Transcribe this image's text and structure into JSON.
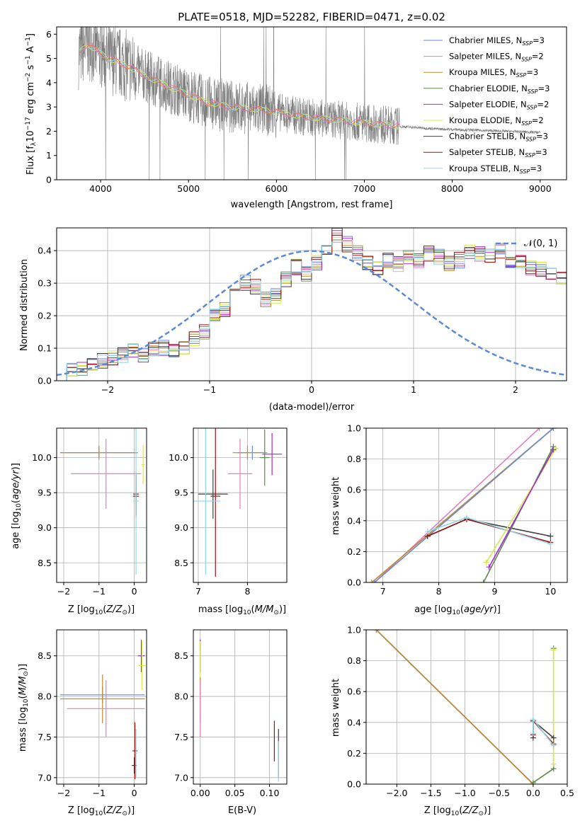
{
  "colors": {
    "Chabrier MILES": "#6a8ad6",
    "Salpeter MILES": "#e17fbf",
    "Kroupa MILES": "#c08a2e",
    "Chabrier ELODIE": "#5d8a4c",
    "Salpeter ELODIE": "#a32bd0",
    "Kroupa ELODIE": "#d9e74a",
    "Chabrier STELIB": "#3f3f3f",
    "Salpeter STELIB": "#9c1313",
    "Kroupa STELIB": "#8fd8e6",
    "data": "#7f7f7f",
    "fit_overlay": "#e8743b",
    "normal": "#5b8ad8"
  },
  "chart_data": [
    {
      "id": "spectrum",
      "type": "line",
      "title": "PLATE=0518, MJD=52282, FIBERID=0471, z=0.02",
      "xlabel": "wavelength [Angstrom, rest frame]",
      "ylabel": "Flux [f_λ 10^-17 erg cm^-2 s^-1 A^-1]",
      "xlim": [
        3500,
        9300
      ],
      "ylim": [
        0,
        6.3
      ],
      "xticks": [
        4000,
        5000,
        6000,
        7000,
        8000,
        9000
      ],
      "yticks": [
        0,
        1,
        2,
        3,
        4,
        5,
        6
      ],
      "grid": false,
      "legend_position": "top-right",
      "legend": [
        {
          "base": "Chabrier MILES, N",
          "n": "3"
        },
        {
          "base": "Salpeter MILES, N",
          "n": "2"
        },
        {
          "base": "Kroupa MILES, N",
          "n": "3"
        },
        {
          "base": "Chabrier ELODIE, N",
          "n": "3"
        },
        {
          "base": "Salpeter ELODIE, N",
          "n": "2"
        },
        {
          "base": "Kroupa ELODIE, N",
          "n": "2"
        },
        {
          "base": "Chabrier STELIB, N",
          "n": "3"
        },
        {
          "base": "Salpeter STELIB, N",
          "n": "3"
        },
        {
          "base": "Kroupa STELIB, N",
          "n": "3"
        }
      ],
      "continuum_estimate": {
        "x": [
          3750,
          3850,
          4000,
          4100,
          4300,
          4500,
          4800,
          5000,
          5200,
          5500,
          5800,
          6000,
          6300,
          6600,
          7000,
          7400,
          7800,
          8200,
          8600,
          9000
        ],
        "y": [
          5.2,
          5.6,
          5.2,
          5.0,
          4.7,
          4.3,
          3.8,
          3.5,
          3.2,
          3.0,
          2.9,
          2.8,
          2.6,
          2.5,
          2.35,
          2.2,
          2.1,
          2.05,
          2.0,
          1.95
        ]
      }
    },
    {
      "id": "residuals",
      "type": "line",
      "xlabel": "(data-model)/error",
      "ylabel": "Normed distribution",
      "xlim": [
        -2.5,
        2.5
      ],
      "ylim": [
        0,
        0.47
      ],
      "xticks": [
        -2,
        -1,
        0,
        1,
        2
      ],
      "yticks": [
        0.0,
        0.1,
        0.2,
        0.3,
        0.4
      ],
      "grid": true,
      "legend_position": "top-right",
      "legend": [
        "𝒩(0, 1)"
      ],
      "normal_reference": {
        "mean": 0,
        "sigma": 1
      },
      "bin_width": 0.1,
      "bin_start": -2.5,
      "histogram_estimate": [
        0.02,
        0.03,
        0.04,
        0.05,
        0.06,
        0.07,
        0.08,
        0.09,
        0.08,
        0.1,
        0.1,
        0.09,
        0.1,
        0.13,
        0.15,
        0.2,
        0.22,
        0.26,
        0.3,
        0.29,
        0.25,
        0.26,
        0.31,
        0.35,
        0.33,
        0.36,
        0.4,
        0.45,
        0.42,
        0.39,
        0.36,
        0.35,
        0.37,
        0.36,
        0.38,
        0.37,
        0.39,
        0.38,
        0.36,
        0.37,
        0.4,
        0.39,
        0.38,
        0.4,
        0.36,
        0.37,
        0.35,
        0.34,
        0.33,
        0.31,
        0.32,
        0.33,
        0.28,
        0.3,
        0.26,
        0.27,
        0.28,
        0.24,
        0.21,
        0.22,
        0.2,
        0.19,
        0.17,
        0.16,
        0.14,
        0.14,
        0.12,
        0.11,
        0.1,
        0.08,
        0.09,
        0.08,
        0.07,
        0.06,
        0.05,
        0.05,
        0.05,
        0.04,
        0.04,
        0.04
      ]
    },
    {
      "id": "age_vs_Z",
      "type": "scatter",
      "xlabel": "Z [log10(Z/Z⊙)]",
      "ylabel": "age [log10(age/yr)]",
      "xlim": [
        -2.2,
        0.35
      ],
      "ylim": [
        8.22,
        10.42
      ],
      "xticks": [
        -2,
        -1,
        0
      ],
      "yticks": [
        8.5,
        9.0,
        9.5,
        10.0
      ],
      "grid": true,
      "points": [
        {
          "model": "Chabrier MILES",
          "x": -1.0,
          "y": 10.07,
          "xerr": 1.1,
          "yerr": 0.08
        },
        {
          "model": "Kroupa MILES",
          "x": -1.0,
          "y": 10.07,
          "xerr": 1.1,
          "yerr": 0.1
        },
        {
          "model": "Salpeter MILES",
          "x": -0.8,
          "y": 9.77,
          "xerr": 1.0,
          "yerr": 0.5
        },
        {
          "model": "Kroupa ELODIE",
          "x": 0.25,
          "y": 9.9,
          "xerr": 0.05,
          "yerr": 0.28
        },
        {
          "model": "Salpeter STELIB",
          "x": 0.05,
          "y": 9.45,
          "xerr": 0.08,
          "yerr": 0.3
        },
        {
          "model": "Chabrier STELIB",
          "x": 0.05,
          "y": 9.48,
          "xerr": 0.08,
          "yerr": 0.3
        },
        {
          "model": "Kroupa STELIB",
          "x": 0.05,
          "y": 9.38,
          "xerr": 0.08,
          "yerr": 1.05
        }
      ]
    },
    {
      "id": "age_vs_mass",
      "type": "scatter",
      "xlabel": "mass [log10(M/M⊙)]",
      "ylabel": "",
      "xlim": [
        6.9,
        8.8
      ],
      "ylim": [
        8.22,
        10.42
      ],
      "xticks": [
        7,
        8
      ],
      "yticks": [
        8.5,
        9.0,
        9.5,
        10.0
      ],
      "grid": true,
      "points": [
        {
          "model": "Chabrier STELIB",
          "x": 7.3,
          "y": 9.48,
          "xerr": 0.3,
          "yerr": 0.35
        },
        {
          "model": "Salpeter STELIB",
          "x": 7.35,
          "y": 9.45,
          "xerr": 0.1,
          "yerr": 1.15
        },
        {
          "model": "Kroupa STELIB",
          "x": 7.15,
          "y": 9.38,
          "xerr": 0.3,
          "yerr": 1.05
        },
        {
          "model": "Salpeter MILES",
          "x": 7.85,
          "y": 9.77,
          "xerr": 0.25,
          "yerr": 0.5
        },
        {
          "model": "Chabrier MILES",
          "x": 8.1,
          "y": 10.07,
          "xerr": 0.3,
          "yerr": 0.1
        },
        {
          "model": "Kroupa MILES",
          "x": 8.0,
          "y": 10.07,
          "xerr": 0.3,
          "yerr": 0.1
        },
        {
          "model": "Salpeter ELODIE",
          "x": 8.5,
          "y": 10.05,
          "xerr": 0.2,
          "yerr": 0.3
        },
        {
          "model": "Chabrier ELODIE",
          "x": 8.35,
          "y": 10.0,
          "xerr": 0.1,
          "yerr": 0.4
        }
      ]
    },
    {
      "id": "weight_vs_age",
      "type": "line",
      "xlabel": "age [log10(age/yr)]",
      "ylabel": "mass weight",
      "xlim": [
        6.7,
        10.3
      ],
      "ylim": [
        0,
        1
      ],
      "xticks": [
        7,
        8,
        9,
        10
      ],
      "yticks": [
        0.0,
        0.2,
        0.4,
        0.6,
        0.8,
        1.0
      ],
      "grid": true,
      "series": [
        {
          "model": "Salpeter MILES",
          "x": [
            6.85,
            9.8
          ],
          "y": [
            0.0,
            1.0
          ]
        },
        {
          "model": "Kroupa MILES",
          "x": [
            6.8,
            10.05
          ],
          "y": [
            0.0,
            1.0
          ]
        },
        {
          "model": "Chabrier MILES",
          "x": [
            6.85,
            10.05
          ],
          "y": [
            0.0,
            1.0
          ]
        },
        {
          "model": "Chabrier STELIB",
          "x": [
            7.8,
            8.5,
            10.0
          ],
          "y": [
            0.3,
            0.41,
            0.3
          ]
        },
        {
          "model": "Salpeter STELIB",
          "x": [
            7.8,
            8.5,
            10.0
          ],
          "y": [
            0.3,
            0.41,
            0.26
          ]
        },
        {
          "model": "Kroupa STELIB",
          "x": [
            7.8,
            8.5,
            10.0
          ],
          "y": [
            0.33,
            0.42,
            0.25
          ]
        },
        {
          "model": "Chabrier ELODIE",
          "x": [
            8.8,
            10.05
          ],
          "y": [
            0.0,
            0.88
          ]
        },
        {
          "model": "Kroupa ELODIE",
          "x": [
            8.85,
            10.1
          ],
          "y": [
            0.13,
            0.87
          ]
        },
        {
          "model": "Salpeter ELODIE",
          "x": [
            8.9,
            10.05
          ],
          "y": [
            0.1,
            0.86
          ]
        }
      ]
    },
    {
      "id": "mass_vs_Z",
      "type": "scatter",
      "xlabel": "Z [log10(Z/Z⊙)]",
      "ylabel": "mass [log10(M/M⊙)]",
      "xlim": [
        -2.2,
        0.35
      ],
      "ylim": [
        6.92,
        8.82
      ],
      "xticks": [
        -2,
        -1,
        0
      ],
      "yticks": [
        7.0,
        7.5,
        8.0,
        8.5
      ],
      "grid": true,
      "points": [
        {
          "model": "Chabrier MILES",
          "x": -0.9,
          "y": 8.02,
          "xerr": 1.2,
          "yerr": 0.1
        },
        {
          "model": "Kroupa MILES",
          "x": -0.9,
          "y": 7.97,
          "xerr": 1.2,
          "yerr": 0.3
        },
        {
          "model": "Salpeter MILES",
          "x": -0.8,
          "y": 7.85,
          "xerr": 1.1,
          "yerr": 0.35
        },
        {
          "model": "Salpeter ELODIE",
          "x": 0.2,
          "y": 8.5,
          "xerr": 0.1,
          "yerr": 0.2
        },
        {
          "model": "Kroupa ELODIE",
          "x": 0.22,
          "y": 8.38,
          "xerr": 0.1,
          "yerr": 0.3
        },
        {
          "model": "Salpeter STELIB",
          "x": 0.02,
          "y": 7.33,
          "xerr": 0.07,
          "yerr": 0.35
        },
        {
          "model": "Chabrier STELIB",
          "x": 0.0,
          "y": 7.15,
          "xerr": 0.07,
          "yerr": 0.1
        },
        {
          "model": "Kroupa STELIB",
          "x": 0.05,
          "y": 7.3,
          "xerr": 0.03,
          "yerr": 0.3
        }
      ]
    },
    {
      "id": "mass_vs_EBV",
      "type": "scatter",
      "xlabel": "E(B-V)",
      "ylabel": "",
      "xlim": [
        -0.01,
        0.125
      ],
      "ylim": [
        6.92,
        8.82
      ],
      "xticks": [
        0.0,
        0.05,
        0.1
      ],
      "xtick_labels": [
        "0.00",
        "0.05",
        "0.10"
      ],
      "yticks": [
        7.0,
        7.5,
        8.0,
        8.5
      ],
      "grid": true,
      "points": [
        {
          "model": "Salpeter ELODIE",
          "x": 0.0,
          "y": 8.5,
          "xerr": 0.0,
          "yerr": 0.2
        },
        {
          "model": "Kroupa ELODIE",
          "x": 0.0,
          "y": 8.38,
          "xerr": 0.0,
          "yerr": 0.3
        },
        {
          "model": "Kroupa MILES",
          "x": 0.0,
          "y": 7.95,
          "xerr": 0.0,
          "yerr": 0.28
        },
        {
          "model": "Salpeter MILES",
          "x": 0.0,
          "y": 7.85,
          "xerr": 0.0,
          "yerr": 0.35
        },
        {
          "model": "Salpeter STELIB",
          "x": 0.107,
          "y": 7.45,
          "xerr": 0.0,
          "yerr": 0.25
        },
        {
          "model": "Chabrier STELIB",
          "x": 0.113,
          "y": 7.3,
          "xerr": 0.0,
          "yerr": 0.3
        },
        {
          "model": "Kroupa STELIB",
          "x": 0.113,
          "y": 7.2,
          "xerr": 0.0,
          "yerr": 0.25
        }
      ]
    },
    {
      "id": "weight_vs_Z",
      "type": "line",
      "xlabel": "Z [log10(Z/Z⊙)]",
      "ylabel": "mass weight",
      "xlim": [
        -2.45,
        0.5
      ],
      "ylim": [
        0,
        1
      ],
      "xticks": [
        -2.0,
        -1.5,
        -1.0,
        -0.5,
        0.0,
        0.5
      ],
      "xtick_labels": [
        "−2.0",
        "−1.5",
        "−1.0",
        "−0.5",
        "0.0",
        "0.5"
      ],
      "yticks": [
        0.0,
        0.2,
        0.4,
        0.6,
        0.8,
        1.0
      ],
      "grid": true,
      "series": [
        {
          "model": "Salpeter MILES",
          "x": [
            -2.3,
            0.0
          ],
          "y": [
            1.0,
            0.0
          ]
        },
        {
          "model": "Chabrier MILES",
          "x": [
            -2.3,
            0.0
          ],
          "y": [
            1.0,
            0.0
          ]
        },
        {
          "model": "Kroupa MILES",
          "x": [
            -2.3,
            0.0
          ],
          "y": [
            1.0,
            0.0
          ]
        },
        {
          "model": "Chabrier ELODIE",
          "x": [
            0.0,
            0.3,
            0.3
          ],
          "y": [
            0.01,
            0.1,
            0.88
          ]
        },
        {
          "model": "Kroupa ELODIE",
          "x": [
            0.3,
            0.3
          ],
          "y": [
            0.13,
            0.87
          ]
        },
        {
          "model": "Chabrier STELIB",
          "x": [
            0.0,
            0.0,
            0.3
          ],
          "y": [
            0.3,
            0.41,
            0.3
          ]
        },
        {
          "model": "Salpeter STELIB",
          "x": [
            0.0,
            0.0,
            0.3
          ],
          "y": [
            0.32,
            0.41,
            0.26
          ]
        },
        {
          "model": "Kroupa STELIB",
          "x": [
            0.0,
            0.0,
            0.3
          ],
          "y": [
            0.33,
            0.42,
            0.25
          ]
        }
      ]
    }
  ]
}
